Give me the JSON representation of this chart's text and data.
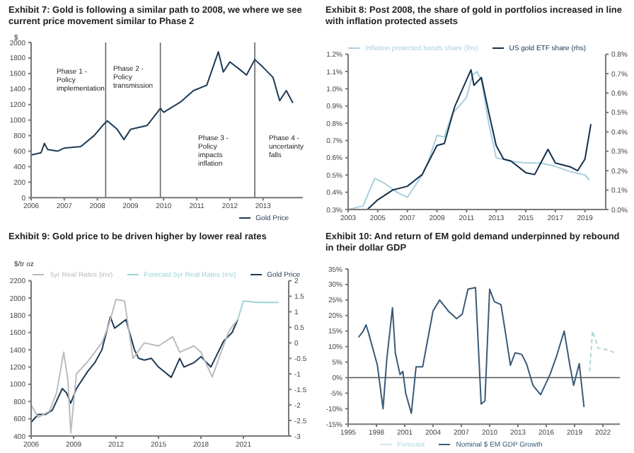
{
  "chart_data": [
    {
      "type": "line",
      "title": "Exhibit 7: Gold is following a similar path to 2008, we where we see current price movement similar to Phase 2",
      "ylabel": "$",
      "x": [
        2006.0,
        2006.3,
        2006.4,
        2006.5,
        2006.8,
        2007.0,
        2007.5,
        2007.9,
        2008.2,
        2008.3,
        2008.6,
        2008.8,
        2009.0,
        2009.5,
        2009.9,
        2010.0,
        2010.5,
        2010.9,
        2011.3,
        2011.65,
        2011.8,
        2012.0,
        2012.3,
        2012.5,
        2012.75,
        2013.0,
        2013.3,
        2013.5,
        2013.7,
        2013.9
      ],
      "series": [
        {
          "name": "Gold Price",
          "color": "#1f3b57",
          "values": [
            550,
            580,
            700,
            620,
            600,
            640,
            660,
            800,
            950,
            990,
            880,
            750,
            880,
            930,
            1150,
            1100,
            1230,
            1380,
            1450,
            1880,
            1620,
            1750,
            1650,
            1580,
            1780,
            1680,
            1550,
            1250,
            1380,
            1220
          ]
        }
      ],
      "xlim": [
        2006,
        2014.2
      ],
      "xticks": [
        2006,
        2007,
        2008,
        2009,
        2010,
        2011,
        2012,
        2013
      ],
      "ylim": [
        0,
        2000
      ],
      "yticks": [
        0,
        200,
        400,
        600,
        800,
        1000,
        1200,
        1400,
        1600,
        1800,
        2000
      ],
      "ref_lines": [
        {
          "axis": "x",
          "value": 2008.25,
          "color": "#666666"
        },
        {
          "axis": "x",
          "value": 2009.9,
          "color": "#666666"
        },
        {
          "axis": "x",
          "value": 2012.75,
          "color": "#666666"
        }
      ],
      "annotations": [
        "Phase 1 - Policy implementation",
        "Phase 2 - Policy transmission",
        "Phase 3 - Policy impacts inflation",
        "Phase 4 - uncertainty falls"
      ],
      "legend": "bottom right"
    },
    {
      "type": "line",
      "title": "Exhibit 8: Post 2008, the share of gold in portfolios increased in line with inflation protected assets",
      "series": [
        {
          "name": "Inflation protected bonds share (lhs)",
          "color": "#a9cfe0",
          "x": [
            2003,
            2004,
            2004.8,
            2005.5,
            2006.3,
            2007,
            2008,
            2008.5,
            2009,
            2009.5,
            2010,
            2010.5,
            2011,
            2011.4,
            2011.7,
            2012,
            2012.5,
            2013,
            2014,
            2015,
            2016,
            2017,
            2018,
            2019,
            2019.3
          ],
          "values": [
            0.3,
            0.32,
            0.48,
            0.45,
            0.4,
            0.37,
            0.5,
            0.6,
            0.73,
            0.72,
            0.85,
            0.9,
            0.95,
            1.08,
            1.1,
            1.05,
            0.8,
            0.6,
            0.58,
            0.57,
            0.57,
            0.55,
            0.52,
            0.5,
            0.47
          ]
        },
        {
          "name": "US gold ETF share (rhs)",
          "color": "#14304a",
          "axis": "y2",
          "x": [
            2003,
            2004.3,
            2005,
            2006,
            2007,
            2008,
            2009,
            2009.5,
            2010.2,
            2011.3,
            2011.5,
            2012,
            2012.5,
            2013,
            2013.5,
            2014,
            2015,
            2015.6,
            2016.5,
            2017,
            2018,
            2018.5,
            2019,
            2019.4
          ],
          "values": [
            0.0,
            0.0,
            0.05,
            0.1,
            0.12,
            0.18,
            0.33,
            0.34,
            0.53,
            0.72,
            0.64,
            0.68,
            0.5,
            0.33,
            0.26,
            0.25,
            0.19,
            0.18,
            0.31,
            0.24,
            0.22,
            0.2,
            0.26,
            0.44
          ]
        }
      ],
      "xlim": [
        2003,
        2020.4
      ],
      "xticks": [
        2003,
        2005,
        2007,
        2009,
        2011,
        2013,
        2015,
        2017,
        2019
      ],
      "ylim": [
        0.3,
        1.2
      ],
      "yticks": [
        {
          "value": 0.3,
          "label": "0.3%"
        },
        {
          "value": 0.4,
          "label": "0.4%"
        },
        {
          "value": 0.5,
          "label": "0.5%"
        },
        {
          "value": 0.6,
          "label": "0.6%"
        },
        {
          "value": 0.7,
          "label": "0.7%"
        },
        {
          "value": 0.8,
          "label": "0.8%"
        },
        {
          "value": 0.9,
          "label": "0.9%"
        },
        {
          "value": 1.0,
          "label": "1.0%"
        },
        {
          "value": 1.1,
          "label": "1.1%"
        },
        {
          "value": 1.2,
          "label": "1.2%"
        }
      ],
      "y2lim": [
        0,
        0.8
      ],
      "y2ticks": [
        {
          "value": 0,
          "label": "0.0%"
        },
        {
          "value": 0.1,
          "label": "0.1%"
        },
        {
          "value": 0.2,
          "label": "0.2%"
        },
        {
          "value": 0.3,
          "label": "0.3%"
        },
        {
          "value": 0.4,
          "label": "0.4%"
        },
        {
          "value": 0.5,
          "label": "0.5%"
        },
        {
          "value": 0.6,
          "label": "0.6%"
        },
        {
          "value": 0.7,
          "label": "0.7%"
        },
        {
          "value": 0.8,
          "label": "0.8%"
        }
      ],
      "legend": "top"
    },
    {
      "type": "line",
      "title": "Exhibit 9: Gold price to be driven higher by lower real rates",
      "ylabel": "$/tr oz",
      "series": [
        {
          "name": "Gold Price",
          "color": "#1f3b57",
          "x": [
            2006,
            2006.5,
            2007,
            2007.5,
            2008.2,
            2008.5,
            2008.8,
            2009.2,
            2010,
            2010.5,
            2011,
            2011.6,
            2011.9,
            2012.3,
            2012.7,
            2013.3,
            2013.6,
            2014,
            2014.5,
            2015,
            2015.9,
            2016.5,
            2016.8,
            2017.5,
            2018,
            2018.7,
            2019,
            2019.6,
            2020.2,
            2020.6
          ],
          "values": [
            560,
            650,
            650,
            700,
            950,
            900,
            780,
            950,
            1150,
            1250,
            1400,
            1780,
            1650,
            1700,
            1750,
            1400,
            1300,
            1280,
            1300,
            1200,
            1080,
            1300,
            1200,
            1250,
            1320,
            1200,
            1300,
            1500,
            1600,
            1750
          ]
        },
        {
          "name": "5yr Real Rates (inv)",
          "color": "#b8bcc0",
          "axis": "y2",
          "x": [
            2006,
            2006.5,
            2007.3,
            2007.8,
            2008.3,
            2008.6,
            2008.8,
            2009.2,
            2010,
            2011,
            2011.5,
            2012,
            2012.6,
            2013.2,
            2014,
            2015,
            2016,
            2016.5,
            2017.5,
            2018,
            2018.8,
            2019.5,
            2020,
            2020.6
          ],
          "values": [
            -2.0,
            -2.4,
            -2.2,
            -1.6,
            -0.3,
            -1.2,
            -2.9,
            -1.0,
            -0.6,
            0.0,
            0.6,
            1.4,
            1.35,
            -0.5,
            0.0,
            -0.1,
            0.2,
            -0.3,
            -0.1,
            -0.3,
            -1.1,
            -0.2,
            0.4,
            0.75
          ]
        },
        {
          "name": "Forecast 5yr Real Rates (inv)",
          "color": "#9fd3d6",
          "axis": "y2",
          "x": [
            2020.6,
            2021,
            2022,
            2023.5
          ],
          "values": [
            0.75,
            1.35,
            1.3,
            1.3
          ]
        }
      ],
      "xlim": [
        2006,
        2024.2
      ],
      "xticks": [
        2006,
        2009,
        2012,
        2015,
        2018,
        2021
      ],
      "ylim": [
        400,
        2200
      ],
      "yticks": [
        400,
        600,
        800,
        1000,
        1200,
        1400,
        1600,
        1800,
        2000,
        2200
      ],
      "y2lim": [
        -3,
        2
      ],
      "y2ticks": [
        -3,
        -2.5,
        -2,
        -1.5,
        -1,
        -0.5,
        0,
        0.5,
        1,
        1.5,
        2
      ],
      "legend": "top right"
    },
    {
      "type": "line",
      "title": "Exhibit 10: And return of EM gold demand underpinned by rebound in their dollar GDP",
      "series": [
        {
          "name": "Nominal $ EM GDP Growth",
          "color": "#3a5a78",
          "x": [
            1996.1,
            1996.6,
            1996.9,
            1997.2,
            1998.1,
            1998.7,
            1999.1,
            1999.7,
            2000,
            2000.5,
            2000.8,
            2001.1,
            2001.7,
            2002.2,
            2002.9,
            2004,
            2004.7,
            2005.6,
            2006.5,
            2007.1,
            2007.7,
            2008.5,
            2009.1,
            2009.5,
            2010,
            2010.5,
            2011.2,
            2011.7,
            2012.2,
            2012.7,
            2013.4,
            2013.9,
            2014.6,
            2015.4,
            2016.4,
            2017.1,
            2017.9,
            2018.5,
            2018.9,
            2019.5,
            2020
          ],
          "values": [
            13,
            15,
            17,
            14,
            4,
            -10,
            6,
            22.5,
            8,
            1,
            2,
            -5,
            -11.5,
            3.5,
            3.5,
            21.5,
            25,
            21.5,
            19,
            20.5,
            28.5,
            29,
            -8.5,
            -7.5,
            28.5,
            24.5,
            23.5,
            14,
            4,
            8,
            7.5,
            4.5,
            -2.5,
            -5.5,
            1,
            7,
            15,
            4,
            -2.5,
            4.5,
            -9.5
          ]
        },
        {
          "name": "Forecast",
          "color": "#b0d8dc",
          "line_style": "dashed",
          "x": [
            2020.6,
            2020.9,
            2021.5,
            2022.4,
            2023.3
          ],
          "values": [
            2,
            15,
            9.5,
            9,
            8
          ]
        }
      ],
      "xlim": [
        1995,
        2023.8
      ],
      "xticks": [
        1995,
        1998,
        2001,
        2004,
        2007,
        2010,
        2013,
        2016,
        2019,
        2022
      ],
      "ylim": [
        -15,
        35
      ],
      "yticks": [
        {
          "value": -15,
          "label": "-15%"
        },
        {
          "value": -10,
          "label": "-10%"
        },
        {
          "value": -5,
          "label": "-5%"
        },
        {
          "value": 0,
          "label": "0%"
        },
        {
          "value": 5,
          "label": "5%"
        },
        {
          "value": 10,
          "label": "10%"
        },
        {
          "value": 15,
          "label": "15%"
        },
        {
          "value": 20,
          "label": "20%"
        },
        {
          "value": 25,
          "label": "25%"
        },
        {
          "value": 30,
          "label": "30%"
        },
        {
          "value": 35,
          "label": "35%"
        }
      ],
      "ref_lines": [
        {
          "axis": "y",
          "value": 0,
          "color": "#555555"
        }
      ],
      "legend": "bottom"
    }
  ]
}
